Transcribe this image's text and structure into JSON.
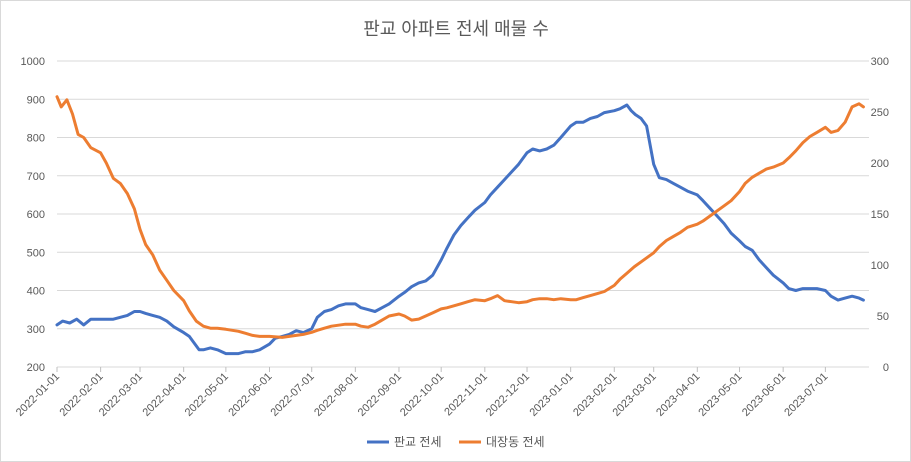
{
  "chart_data": {
    "type": "line",
    "title": "판교 아파트 전세 매물 수",
    "x_tick_labels": [
      "2022-01-01",
      "2022-02-01",
      "2022-03-01",
      "2022-04-01",
      "2022-05-01",
      "2022-06-01",
      "2022-07-01",
      "2022-08-01",
      "2022-09-01",
      "2022-10-01",
      "2022-11-01",
      "2022-12-01",
      "2023-01-01",
      "2023-02-01",
      "2023-03-01",
      "2023-04-01",
      "2023-05-01",
      "2023-06-01",
      "2023-07-01"
    ],
    "y_left": {
      "min": 200,
      "max": 1000,
      "step": 100,
      "tick_labels": [
        "200",
        "300",
        "400",
        "500",
        "600",
        "700",
        "800",
        "900",
        "1000"
      ]
    },
    "y_right": {
      "min": 0,
      "max": 300,
      "step": 50,
      "tick_labels": [
        "0",
        "50",
        "100",
        "150",
        "200",
        "250",
        "300"
      ]
    },
    "grid": true,
    "legend_position": "bottom",
    "series": [
      {
        "name": "판교 전세",
        "axis": "left",
        "color": "#4472C4",
        "points": [
          [
            "2022-01-01",
            310
          ],
          [
            "2022-01-05",
            320
          ],
          [
            "2022-01-10",
            315
          ],
          [
            "2022-01-15",
            325
          ],
          [
            "2022-01-20",
            310
          ],
          [
            "2022-01-25",
            325
          ],
          [
            "2022-02-01",
            325
          ],
          [
            "2022-02-10",
            325
          ],
          [
            "2022-02-15",
            330
          ],
          [
            "2022-02-20",
            335
          ],
          [
            "2022-02-25",
            345
          ],
          [
            "2022-03-01",
            345
          ],
          [
            "2022-03-05",
            340
          ],
          [
            "2022-03-10",
            335
          ],
          [
            "2022-03-15",
            330
          ],
          [
            "2022-03-20",
            320
          ],
          [
            "2022-03-25",
            305
          ],
          [
            "2022-04-01",
            290
          ],
          [
            "2022-04-05",
            280
          ],
          [
            "2022-04-08",
            265
          ],
          [
            "2022-04-12",
            245
          ],
          [
            "2022-04-15",
            245
          ],
          [
            "2022-04-20",
            250
          ],
          [
            "2022-04-25",
            245
          ],
          [
            "2022-05-01",
            235
          ],
          [
            "2022-05-10",
            235
          ],
          [
            "2022-05-15",
            240
          ],
          [
            "2022-05-20",
            240
          ],
          [
            "2022-05-25",
            245
          ],
          [
            "2022-06-01",
            260
          ],
          [
            "2022-06-05",
            275
          ],
          [
            "2022-06-10",
            280
          ],
          [
            "2022-06-15",
            285
          ],
          [
            "2022-06-20",
            295
          ],
          [
            "2022-06-25",
            290
          ],
          [
            "2022-07-01",
            300
          ],
          [
            "2022-07-05",
            330
          ],
          [
            "2022-07-10",
            345
          ],
          [
            "2022-07-15",
            350
          ],
          [
            "2022-07-20",
            360
          ],
          [
            "2022-07-25",
            365
          ],
          [
            "2022-08-01",
            365
          ],
          [
            "2022-08-05",
            355
          ],
          [
            "2022-08-10",
            350
          ],
          [
            "2022-08-15",
            345
          ],
          [
            "2022-08-20",
            355
          ],
          [
            "2022-08-25",
            365
          ],
          [
            "2022-09-01",
            385
          ],
          [
            "2022-09-05",
            395
          ],
          [
            "2022-09-10",
            410
          ],
          [
            "2022-09-15",
            420
          ],
          [
            "2022-09-20",
            425
          ],
          [
            "2022-09-25",
            440
          ],
          [
            "2022-10-01",
            480
          ],
          [
            "2022-10-05",
            510
          ],
          [
            "2022-10-10",
            545
          ],
          [
            "2022-10-15",
            570
          ],
          [
            "2022-10-20",
            590
          ],
          [
            "2022-10-25",
            610
          ],
          [
            "2022-11-01",
            630
          ],
          [
            "2022-11-05",
            650
          ],
          [
            "2022-11-10",
            670
          ],
          [
            "2022-11-15",
            690
          ],
          [
            "2022-11-20",
            710
          ],
          [
            "2022-11-25",
            730
          ],
          [
            "2022-12-01",
            760
          ],
          [
            "2022-12-05",
            770
          ],
          [
            "2022-12-10",
            765
          ],
          [
            "2022-12-15",
            770
          ],
          [
            "2022-12-20",
            780
          ],
          [
            "2022-12-25",
            800
          ],
          [
            "2023-01-01",
            830
          ],
          [
            "2023-01-05",
            840
          ],
          [
            "2023-01-10",
            840
          ],
          [
            "2023-01-15",
            850
          ],
          [
            "2023-01-20",
            855
          ],
          [
            "2023-01-25",
            865
          ],
          [
            "2023-02-01",
            870
          ],
          [
            "2023-02-05",
            875
          ],
          [
            "2023-02-10",
            885
          ],
          [
            "2023-02-13",
            870
          ],
          [
            "2023-02-16",
            860
          ],
          [
            "2023-02-20",
            850
          ],
          [
            "2023-02-24",
            830
          ],
          [
            "2023-03-01",
            730
          ],
          [
            "2023-03-05",
            695
          ],
          [
            "2023-03-10",
            690
          ],
          [
            "2023-03-15",
            680
          ],
          [
            "2023-03-20",
            670
          ],
          [
            "2023-03-25",
            660
          ],
          [
            "2023-04-01",
            650
          ],
          [
            "2023-04-05",
            635
          ],
          [
            "2023-04-10",
            615
          ],
          [
            "2023-04-15",
            595
          ],
          [
            "2023-04-20",
            575
          ],
          [
            "2023-04-25",
            550
          ],
          [
            "2023-05-01",
            530
          ],
          [
            "2023-05-05",
            515
          ],
          [
            "2023-05-10",
            505
          ],
          [
            "2023-05-15",
            480
          ],
          [
            "2023-05-20",
            460
          ],
          [
            "2023-05-25",
            440
          ],
          [
            "2023-06-01",
            420
          ],
          [
            "2023-06-05",
            405
          ],
          [
            "2023-06-10",
            400
          ],
          [
            "2023-06-15",
            405
          ],
          [
            "2023-06-20",
            405
          ],
          [
            "2023-06-25",
            405
          ],
          [
            "2023-07-01",
            400
          ],
          [
            "2023-07-05",
            385
          ],
          [
            "2023-07-10",
            375
          ],
          [
            "2023-07-15",
            380
          ],
          [
            "2023-07-20",
            385
          ],
          [
            "2023-07-25",
            380
          ],
          [
            "2023-07-28",
            375
          ]
        ]
      },
      {
        "name": "대장동 전세",
        "axis": "right",
        "color": "#ED7D31",
        "points": [
          [
            "2022-01-01",
            265
          ],
          [
            "2022-01-04",
            255
          ],
          [
            "2022-01-08",
            262
          ],
          [
            "2022-01-12",
            248
          ],
          [
            "2022-01-16",
            228
          ],
          [
            "2022-01-20",
            225
          ],
          [
            "2022-01-25",
            215
          ],
          [
            "2022-02-01",
            210
          ],
          [
            "2022-02-05",
            200
          ],
          [
            "2022-02-10",
            185
          ],
          [
            "2022-02-15",
            180
          ],
          [
            "2022-02-20",
            170
          ],
          [
            "2022-02-25",
            155
          ],
          [
            "2022-03-01",
            135
          ],
          [
            "2022-03-05",
            120
          ],
          [
            "2022-03-10",
            110
          ],
          [
            "2022-03-15",
            95
          ],
          [
            "2022-03-20",
            85
          ],
          [
            "2022-03-25",
            75
          ],
          [
            "2022-04-01",
            65
          ],
          [
            "2022-04-05",
            55
          ],
          [
            "2022-04-10",
            45
          ],
          [
            "2022-04-15",
            40
          ],
          [
            "2022-04-20",
            38
          ],
          [
            "2022-04-25",
            38
          ],
          [
            "2022-05-01",
            37
          ],
          [
            "2022-05-10",
            35
          ],
          [
            "2022-05-15",
            33
          ],
          [
            "2022-05-20",
            31
          ],
          [
            "2022-05-25",
            30
          ],
          [
            "2022-06-01",
            30
          ],
          [
            "2022-06-10",
            29
          ],
          [
            "2022-06-15",
            30
          ],
          [
            "2022-06-20",
            31
          ],
          [
            "2022-06-25",
            32
          ],
          [
            "2022-07-01",
            34
          ],
          [
            "2022-07-05",
            36
          ],
          [
            "2022-07-10",
            38
          ],
          [
            "2022-07-15",
            40
          ],
          [
            "2022-07-20",
            41
          ],
          [
            "2022-07-25",
            42
          ],
          [
            "2022-08-01",
            42
          ],
          [
            "2022-08-05",
            40
          ],
          [
            "2022-08-10",
            39
          ],
          [
            "2022-08-15",
            42
          ],
          [
            "2022-08-20",
            46
          ],
          [
            "2022-08-25",
            50
          ],
          [
            "2022-09-01",
            52
          ],
          [
            "2022-09-05",
            50
          ],
          [
            "2022-09-10",
            46
          ],
          [
            "2022-09-15",
            47
          ],
          [
            "2022-09-20",
            50
          ],
          [
            "2022-09-25",
            53
          ],
          [
            "2022-10-01",
            57
          ],
          [
            "2022-10-05",
            58
          ],
          [
            "2022-10-10",
            60
          ],
          [
            "2022-10-15",
            62
          ],
          [
            "2022-10-20",
            64
          ],
          [
            "2022-10-25",
            66
          ],
          [
            "2022-11-01",
            65
          ],
          [
            "2022-11-05",
            67
          ],
          [
            "2022-11-10",
            70
          ],
          [
            "2022-11-15",
            65
          ],
          [
            "2022-11-20",
            64
          ],
          [
            "2022-11-25",
            63
          ],
          [
            "2022-12-01",
            64
          ],
          [
            "2022-12-05",
            66
          ],
          [
            "2022-12-10",
            67
          ],
          [
            "2022-12-15",
            67
          ],
          [
            "2022-12-20",
            66
          ],
          [
            "2022-12-25",
            67
          ],
          [
            "2023-01-01",
            66
          ],
          [
            "2023-01-05",
            66
          ],
          [
            "2023-01-10",
            68
          ],
          [
            "2023-01-15",
            70
          ],
          [
            "2023-01-20",
            72
          ],
          [
            "2023-01-25",
            74
          ],
          [
            "2023-02-01",
            80
          ],
          [
            "2023-02-05",
            86
          ],
          [
            "2023-02-10",
            92
          ],
          [
            "2023-02-15",
            98
          ],
          [
            "2023-02-20",
            103
          ],
          [
            "2023-02-25",
            108
          ],
          [
            "2023-03-01",
            112
          ],
          [
            "2023-03-05",
            118
          ],
          [
            "2023-03-10",
            124
          ],
          [
            "2023-03-15",
            128
          ],
          [
            "2023-03-20",
            132
          ],
          [
            "2023-03-25",
            137
          ],
          [
            "2023-04-01",
            140
          ],
          [
            "2023-04-05",
            143
          ],
          [
            "2023-04-10",
            148
          ],
          [
            "2023-04-15",
            153
          ],
          [
            "2023-04-20",
            158
          ],
          [
            "2023-04-25",
            163
          ],
          [
            "2023-05-01",
            172
          ],
          [
            "2023-05-05",
            180
          ],
          [
            "2023-05-10",
            186
          ],
          [
            "2023-05-15",
            190
          ],
          [
            "2023-05-20",
            194
          ],
          [
            "2023-05-25",
            196
          ],
          [
            "2023-06-01",
            200
          ],
          [
            "2023-06-05",
            205
          ],
          [
            "2023-06-10",
            212
          ],
          [
            "2023-06-15",
            220
          ],
          [
            "2023-06-20",
            226
          ],
          [
            "2023-06-25",
            230
          ],
          [
            "2023-07-01",
            235
          ],
          [
            "2023-07-05",
            230
          ],
          [
            "2023-07-10",
            232
          ],
          [
            "2023-07-15",
            240
          ],
          [
            "2023-07-20",
            255
          ],
          [
            "2023-07-25",
            258
          ],
          [
            "2023-07-28",
            255
          ]
        ]
      }
    ]
  }
}
